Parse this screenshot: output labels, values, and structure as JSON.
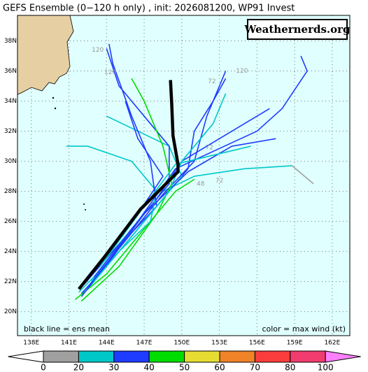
{
  "chart_data": {
    "type": "track-map",
    "title": "GEFS Ensemble (0−120 h only) , init: 2026081200, WP91 Invest",
    "watermark": "Weathernerds.org",
    "note_left": "black line = ens mean",
    "note_right": "color = max wind (kt)",
    "xlim": [
      136.9,
      163.4
    ],
    "ylim": [
      18.4,
      39.7
    ],
    "xticks": [
      {
        "value": 138,
        "label": "138E"
      },
      {
        "value": 141,
        "label": "141E"
      },
      {
        "value": 144,
        "label": "144E"
      },
      {
        "value": 147,
        "label": "147E"
      },
      {
        "value": 150,
        "label": "150E"
      },
      {
        "value": 153,
        "label": "153E"
      },
      {
        "value": 156,
        "label": "156E"
      },
      {
        "value": 159,
        "label": "159E"
      },
      {
        "value": 162,
        "label": "162E"
      }
    ],
    "yticks": [
      {
        "value": 20,
        "label": "20N"
      },
      {
        "value": 22,
        "label": "22N"
      },
      {
        "value": 24,
        "label": "24N"
      },
      {
        "value": 26,
        "label": "26N"
      },
      {
        "value": 28,
        "label": "28N"
      },
      {
        "value": 30,
        "label": "30N"
      },
      {
        "value": 32,
        "label": "32N"
      },
      {
        "value": 34,
        "label": "34N"
      },
      {
        "value": 36,
        "label": "36N"
      },
      {
        "value": 38,
        "label": "38N"
      }
    ],
    "grid": true,
    "tracks": [
      {
        "color": "#1e3cff",
        "lon": [
          142.0,
          144.5,
          147.5,
          150.5,
          151.0,
          152.5,
          153.5
        ],
        "lat": [
          21.2,
          23.5,
          26.5,
          29.5,
          32.0,
          34.0,
          35.5
        ]
      },
      {
        "color": "#00c8c8",
        "lon": [
          142.5,
          145.0,
          148.0,
          150.0,
          149.0,
          146.5,
          144.0
        ],
        "lat": [
          21.5,
          24.0,
          27.0,
          29.0,
          31.0,
          32.0,
          33.0
        ]
      },
      {
        "color": "#00dc00",
        "lon": [
          141.5,
          144.0,
          147.0,
          149.5,
          151.0
        ],
        "lat": [
          20.8,
          22.5,
          25.5,
          28.0,
          28.8
        ]
      },
      {
        "color": "#1e3cff",
        "lon": [
          142.2,
          145.0,
          148.0,
          150.0,
          153.0,
          155.0,
          157.0
        ],
        "lat": [
          21.8,
          24.5,
          27.5,
          30.0,
          31.5,
          32.5,
          33.5
        ]
      },
      {
        "color": "#00c8c8",
        "lon": [
          142.8,
          145.5,
          148.5,
          151.0,
          155.0,
          158.8
        ],
        "lat": [
          22.0,
          25.0,
          28.0,
          29.0,
          29.5,
          29.7
        ]
      },
      {
        "color": "#a0a0a0",
        "lon": [
          158.8,
          160.5
        ],
        "lat": [
          29.7,
          28.5
        ]
      },
      {
        "color": "#1e3cff",
        "lon": [
          143.0,
          146.0,
          149.0,
          149.0,
          147.0,
          145.0,
          144.0
        ],
        "lat": [
          22.0,
          25.5,
          28.5,
          31.0,
          33.0,
          35.0,
          37.5
        ]
      },
      {
        "color": "#1e3cff",
        "lon": [
          142.0,
          145.0,
          148.5,
          151.0,
          152.0,
          153.5
        ],
        "lat": [
          21.0,
          24.2,
          27.8,
          30.0,
          33.0,
          36.0
        ]
      },
      {
        "color": "#00c8c8",
        "lon": [
          141.8,
          145.0,
          147.5,
          148.0,
          146.0,
          142.5,
          140.8
        ],
        "lat": [
          21.3,
          24.0,
          26.0,
          28.0,
          30.0,
          31.0,
          31.0
        ]
      },
      {
        "color": "#1e3cff",
        "lon": [
          143.0,
          146.5,
          149.5,
          156.0,
          158.0,
          160.0,
          159.5
        ],
        "lat": [
          22.3,
          26.0,
          29.5,
          32.0,
          33.5,
          36.0,
          37.0
        ]
      },
      {
        "color": "#1e3cff",
        "lon": [
          142.5,
          145.5,
          148.0,
          147.5,
          146.0,
          144.5,
          144.2
        ],
        "lat": [
          21.6,
          24.8,
          27.0,
          30.0,
          33.0,
          36.5,
          37.8
        ]
      },
      {
        "color": "#1e3cff",
        "lon": [
          143.5,
          147.0,
          150.5,
          154.0,
          157.5
        ],
        "lat": [
          22.5,
          26.5,
          29.3,
          31.0,
          31.5
        ]
      },
      {
        "color": "#00dc00",
        "lon": [
          142.0,
          145.0,
          148.0,
          149.2,
          148.5,
          147.0,
          146.0
        ],
        "lat": [
          20.7,
          23.0,
          26.5,
          28.5,
          31.0,
          34.0,
          35.5
        ]
      },
      {
        "color": "#00c8c8",
        "lon": [
          143.0,
          146.0,
          149.0,
          150.0,
          152.5,
          153.5
        ],
        "lat": [
          22.0,
          25.0,
          28.0,
          30.0,
          32.5,
          34.5
        ]
      },
      {
        "color": "#1e3cff",
        "lon": [
          143.2,
          146.5,
          148.5,
          146.5,
          145.5
        ],
        "lat": [
          22.8,
          26.5,
          29.0,
          31.5,
          34.0
        ]
      },
      {
        "color": "#00c8c8",
        "lon": [
          143.5,
          147.0,
          149.5,
          153.0,
          155.5
        ],
        "lat": [
          23.0,
          27.0,
          29.8,
          30.5,
          31.0
        ]
      }
    ],
    "mean_track": {
      "color": "#000000",
      "lon": [
        141.8,
        143.9,
        146.7,
        149.7,
        149.7,
        149.3,
        149.2,
        149.1
      ],
      "lat": [
        21.5,
        23.7,
        26.8,
        29.3,
        29.8,
        31.7,
        33.8,
        35.4
      ]
    },
    "annotations": [
      {
        "text": "120",
        "lon": 143.3,
        "lat": 37.4
      },
      {
        "text": "120",
        "lon": 144.3,
        "lat": 35.9
      },
      {
        "text": "120",
        "lon": 154.8,
        "lat": 36.0
      },
      {
        "text": "72",
        "lon": 152.4,
        "lat": 35.3
      },
      {
        "text": "72",
        "lon": 152.2,
        "lat": 30.9
      },
      {
        "text": "48",
        "lon": 151.5,
        "lat": 28.5
      },
      {
        "text": "72",
        "lon": 153.0,
        "lat": 28.7
      }
    ],
    "colorbar": {
      "ticks": [
        0,
        20,
        30,
        40,
        50,
        60,
        70,
        80,
        100
      ],
      "colors": [
        "#a0a0a0",
        "#00c8c8",
        "#1e3cff",
        "#00dc00",
        "#e6dc32",
        "#f08228",
        "#fa3c3c",
        "#f03c6e"
      ],
      "under_color": "#ffffff",
      "over_color": "#ff80ff"
    }
  }
}
